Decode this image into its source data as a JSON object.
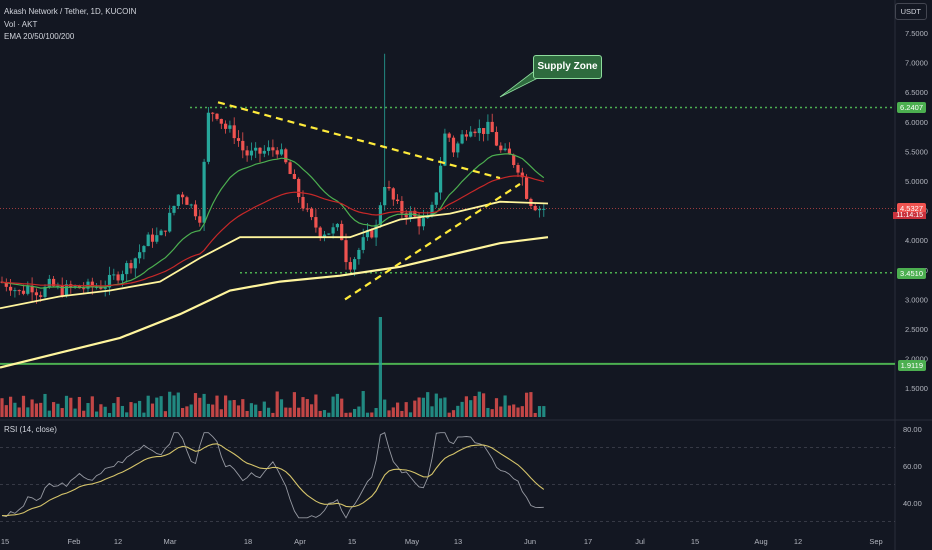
{
  "header": {
    "symbol_line": "Akash Network / Tether, 1D, KUCOIN",
    "volume_line": "Vol · AKT",
    "ema_line": "EMA 20/50/100/200"
  },
  "currency": "USDT",
  "annotation": {
    "label": "Supply Zone"
  },
  "price_tags": {
    "upper": "6.2407",
    "current": "4.5327",
    "countdown": "11:14:15",
    "mid": "3.4510",
    "lower": "1.9119"
  },
  "rsi": {
    "label": "RSI (14, close)"
  },
  "colors": {
    "background": "#131722",
    "up": "#26a69a",
    "down": "#ef5350",
    "ema20": "#4caf50",
    "ema50": "#c62828",
    "ema100": "#fff59d",
    "ema200": "#fff59d",
    "level": "#4caf50",
    "trend": "#ffeb3b",
    "rsi_line": "#9598a1",
    "rsi_ma": "#d4c36a"
  },
  "chart_data": {
    "type": "candlestick",
    "price_axis": [
      "7.5000",
      "7.0000",
      "6.5000",
      "6.0000",
      "5.5000",
      "5.0000",
      "4.5000",
      "4.0000",
      "3.5000",
      "3.0000",
      "2.5000",
      "2.0000",
      "1.5000"
    ],
    "rsi_axis": [
      "80.00",
      "60.00",
      "40.00"
    ],
    "x_ticks": [
      "15",
      "Feb",
      "12",
      "Mar",
      "18",
      "Apr",
      "15",
      "May",
      "13",
      "Jun",
      "17",
      "Jul",
      "15",
      "Aug",
      "12",
      "Sep"
    ],
    "levels": [
      6.2407,
      3.451,
      1.9119
    ],
    "current_price": 4.5327,
    "ylim": [
      1.3,
      7.75
    ]
  }
}
